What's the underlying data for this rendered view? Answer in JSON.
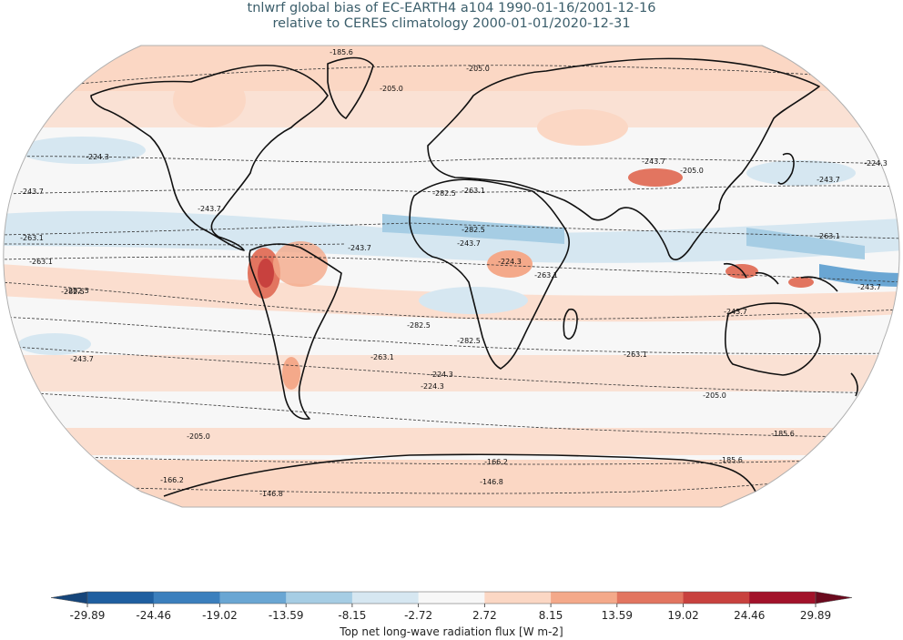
{
  "title": {
    "line1": "tnlwrf global bias of EC-EARTH4 a104 1990-01-16/2001-12-16",
    "line2": "relative to CERES climatology 2000-01-01/2020-12-31"
  },
  "colorbar": {
    "label": "Top net long-wave radiation flux [W m-2]",
    "ticks": [
      "-29.89",
      "-24.46",
      "-19.02",
      "-13.59",
      "-8.15",
      "-2.72",
      "2.72",
      "8.15",
      "13.59",
      "19.02",
      "24.46",
      "29.89"
    ],
    "colors": [
      "#1f5fa0",
      "#3b7fbd",
      "#6aa6d3",
      "#a6cde4",
      "#d6e7f1",
      "#f7f7f7",
      "#fbd7c4",
      "#f4a98a",
      "#e27560",
      "#c8413e",
      "#a2122a"
    ],
    "under_color": "#16457a",
    "over_color": "#6b0a1e"
  },
  "contour_labels": [
    {
      "text": "-185.6"
    },
    {
      "text": "-205.0"
    },
    {
      "text": "-205.0"
    },
    {
      "text": "-224.3"
    },
    {
      "text": "-224.3"
    },
    {
      "text": "-243.7"
    },
    {
      "text": "-243.7"
    },
    {
      "text": "-243.7"
    },
    {
      "text": "-263.1"
    },
    {
      "text": "-263.1"
    },
    {
      "text": "-263.1"
    },
    {
      "text": "-263.1"
    },
    {
      "text": "-263.1"
    },
    {
      "text": "-282.5"
    },
    {
      "text": "-282.5"
    },
    {
      "text": "-282.5"
    },
    {
      "text": "-282.5"
    },
    {
      "text": "-282.5"
    },
    {
      "text": "-243.7"
    },
    {
      "text": "-243.7"
    },
    {
      "text": "-224.3"
    },
    {
      "text": "-243.7"
    },
    {
      "text": "-263.1"
    },
    {
      "text": "-282.5"
    },
    {
      "text": "-263.1"
    },
    {
      "text": "-243.7"
    },
    {
      "text": "-224.3"
    },
    {
      "text": "-224.3"
    },
    {
      "text": "-205.0"
    },
    {
      "text": "-205.0"
    },
    {
      "text": "-185.6"
    },
    {
      "text": "-166.2"
    },
    {
      "text": "-185.6"
    },
    {
      "text": "-166.2"
    },
    {
      "text": "-146.8"
    },
    {
      "text": "-146.8"
    },
    {
      "text": "-243.7"
    },
    {
      "text": "-205.0"
    },
    {
      "text": "-243.7"
    }
  ]
}
